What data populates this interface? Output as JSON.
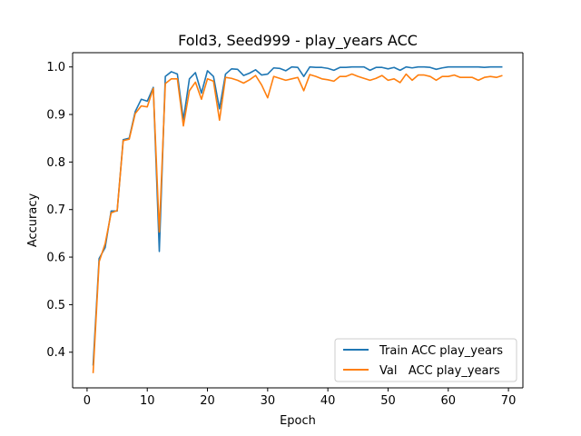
{
  "chart_data": {
    "type": "line",
    "title": "Fold3, Seed999 - play_years ACC",
    "xlabel": "Epoch",
    "ylabel": "Accuracy",
    "xlim": [
      -2.4,
      72.4
    ],
    "ylim": [
      0.325,
      1.03
    ],
    "xticks": [
      0,
      10,
      20,
      30,
      40,
      50,
      60,
      70
    ],
    "yticks": [
      0.4,
      0.5,
      0.6,
      0.7,
      0.8,
      0.9,
      1.0
    ],
    "ytick_labels": [
      "0.4",
      "0.5",
      "0.6",
      "0.7",
      "0.8",
      "0.9",
      "1.0"
    ],
    "grid": false,
    "legend_position": "lower-right",
    "x": [
      1,
      2,
      3,
      4,
      5,
      6,
      7,
      8,
      9,
      10,
      11,
      12,
      13,
      14,
      15,
      16,
      17,
      18,
      19,
      20,
      21,
      22,
      23,
      24,
      25,
      26,
      27,
      28,
      29,
      30,
      31,
      32,
      33,
      34,
      35,
      36,
      37,
      38,
      39,
      40,
      41,
      42,
      43,
      44,
      45,
      46,
      47,
      48,
      49,
      50,
      51,
      52,
      53,
      54,
      55,
      56,
      57,
      58,
      59,
      60,
      61,
      62,
      63,
      64,
      65,
      66,
      67,
      68,
      69
    ],
    "series": [
      {
        "name": "Train ACC play_years",
        "color": "#1f77b4",
        "values": [
          0.372,
          0.597,
          0.62,
          0.697,
          0.697,
          0.847,
          0.85,
          0.906,
          0.932,
          0.928,
          0.957,
          0.612,
          0.98,
          0.99,
          0.985,
          0.889,
          0.975,
          0.988,
          0.945,
          0.992,
          0.98,
          0.912,
          0.985,
          0.996,
          0.995,
          0.982,
          0.987,
          0.994,
          0.983,
          0.985,
          0.998,
          0.997,
          0.992,
          1.0,
          0.999,
          0.98,
          1.0,
          0.999,
          0.999,
          0.997,
          0.993,
          0.999,
          0.999,
          1.0,
          1.0,
          1.0,
          0.993,
          0.999,
          0.999,
          0.996,
          0.999,
          0.993,
          1.0,
          0.998,
          1.0,
          1.0,
          0.999,
          0.995,
          0.998,
          1.0,
          1.0,
          1.0,
          1.0,
          1.0,
          1.0,
          0.999,
          1.0,
          1.0,
          1.0
        ]
      },
      {
        "name": "Val   ACC play_years",
        "color": "#ff7f0e",
        "values": [
          0.356,
          0.59,
          0.628,
          0.693,
          0.698,
          0.845,
          0.848,
          0.902,
          0.918,
          0.916,
          0.955,
          0.653,
          0.965,
          0.975,
          0.975,
          0.876,
          0.95,
          0.968,
          0.932,
          0.975,
          0.97,
          0.888,
          0.978,
          0.976,
          0.972,
          0.966,
          0.973,
          0.982,
          0.962,
          0.935,
          0.98,
          0.976,
          0.972,
          0.975,
          0.978,
          0.95,
          0.984,
          0.98,
          0.975,
          0.973,
          0.97,
          0.98,
          0.98,
          0.985,
          0.98,
          0.976,
          0.972,
          0.976,
          0.982,
          0.972,
          0.975,
          0.967,
          0.985,
          0.972,
          0.983,
          0.983,
          0.98,
          0.972,
          0.98,
          0.98,
          0.983,
          0.978,
          0.978,
          0.978,
          0.972,
          0.978,
          0.98,
          0.978,
          0.982
        ]
      }
    ]
  }
}
